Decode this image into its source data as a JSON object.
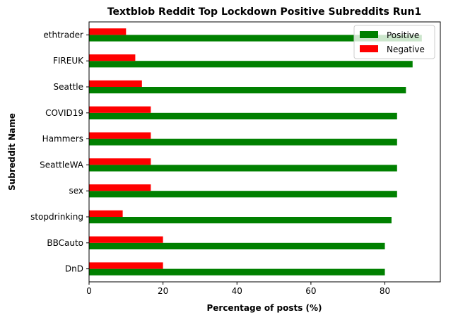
{
  "chart_data": {
    "type": "bar",
    "orientation": "horizontal",
    "title": "Textblob Reddit Top Lockdown Positive Subreddits Run1",
    "xlabel": "Percentage of posts (%)",
    "ylabel": "Subreddit Name",
    "xlim": [
      0,
      95
    ],
    "xticks": [
      0,
      20,
      40,
      60,
      80
    ],
    "grid": false,
    "legend_position": "top-right",
    "categories": [
      "DnD",
      "BBCauto",
      "stopdrinking",
      "sex",
      "SeattleWA",
      "Hammers",
      "COVID19",
      "Seattle",
      "FIREUK",
      "ethtrader"
    ],
    "series": [
      {
        "name": "Positive",
        "color": "#008000",
        "values": [
          80.0,
          80.0,
          81.8,
          83.3,
          83.3,
          83.3,
          83.3,
          85.7,
          87.5,
          90.0
        ]
      },
      {
        "name": "Negative",
        "color": "#ff0000",
        "values": [
          20.0,
          20.0,
          9.1,
          16.7,
          16.7,
          16.7,
          16.7,
          14.3,
          12.5,
          10.0
        ]
      }
    ]
  }
}
